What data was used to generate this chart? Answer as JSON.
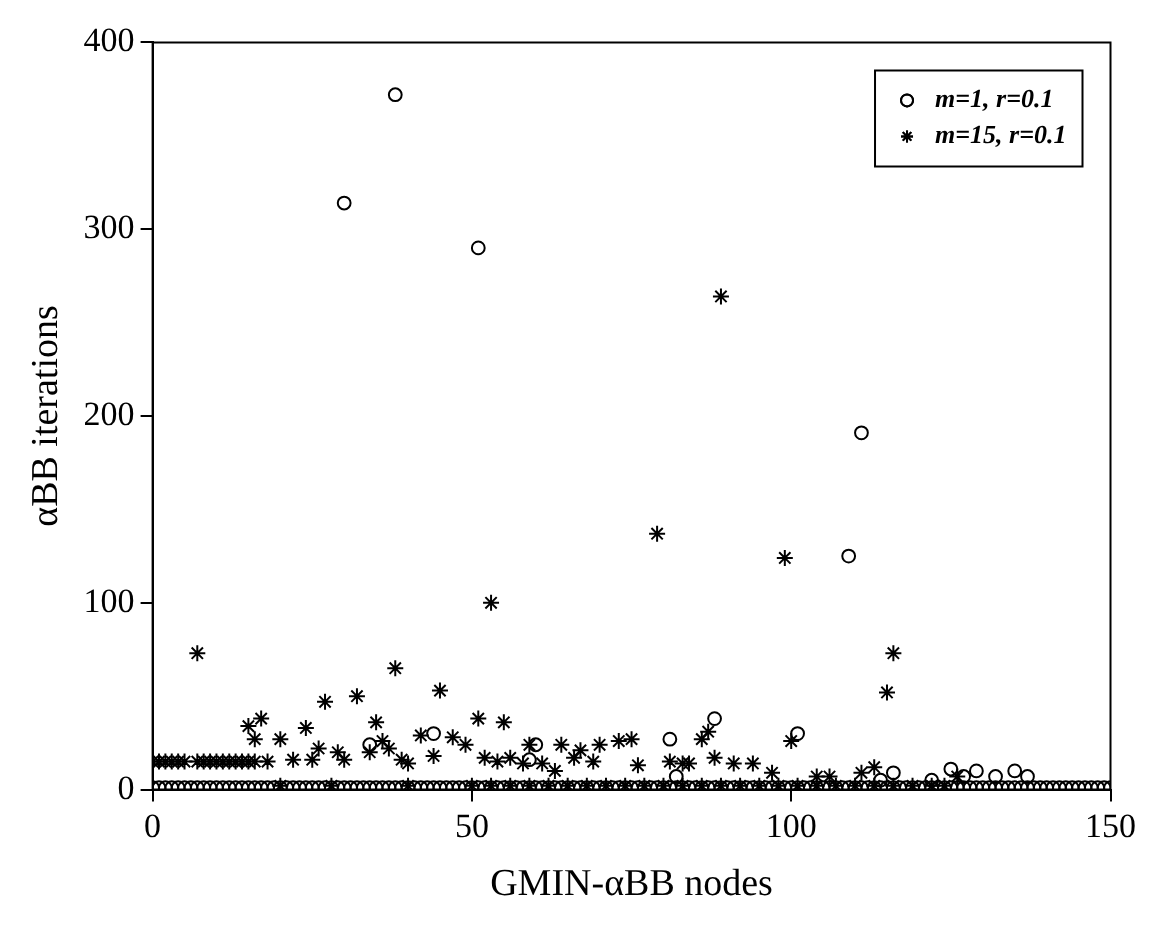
{
  "chart_data": {
    "type": "scatter",
    "xlabel": "GMIN-αBB nodes",
    "ylabel": "αBB iterations",
    "xlim": [
      0,
      150
    ],
    "xticks": [
      0,
      50,
      100,
      150
    ],
    "ylim": [
      0,
      400
    ],
    "yticks": [
      0,
      100,
      200,
      300,
      400
    ],
    "grid": false,
    "legend": "top right",
    "series": [
      {
        "name": "m=1, r=0.1",
        "color": "#000000",
        "marker": "circle",
        "x": [
          0,
          1,
          2,
          3,
          4,
          5,
          6,
          7,
          8,
          9,
          10,
          11,
          12,
          13,
          14,
          15,
          16,
          17,
          18,
          19,
          20,
          21,
          22,
          23,
          24,
          25,
          26,
          27,
          28,
          29,
          30,
          31,
          32,
          33,
          34,
          35,
          36,
          37,
          38,
          39,
          40,
          41,
          42,
          43,
          44,
          45,
          46,
          47,
          48,
          49,
          50,
          51,
          52,
          53,
          54,
          55,
          56,
          57,
          58,
          59,
          60,
          61,
          62,
          63,
          64,
          65,
          66,
          67,
          68,
          69,
          70,
          71,
          72,
          73,
          74,
          75,
          76,
          77,
          78,
          79,
          80,
          81,
          82,
          83,
          84,
          85,
          86,
          87,
          88,
          89,
          90,
          91,
          92,
          93,
          94,
          95,
          96,
          97,
          98,
          99,
          100,
          101,
          102,
          103,
          104,
          105,
          106,
          107,
          108,
          109,
          110,
          111,
          112,
          113,
          114,
          115,
          116,
          117,
          118,
          119,
          120,
          121,
          122,
          123,
          124,
          125,
          126,
          127,
          128,
          129,
          130,
          131,
          132,
          133,
          134,
          135,
          136,
          137,
          138,
          139,
          140,
          141,
          142,
          143,
          144,
          145,
          146,
          147,
          148,
          149,
          150,
          30,
          38,
          51,
          111,
          109,
          34,
          44,
          60,
          59,
          81,
          82,
          88,
          101,
          116,
          114,
          122,
          125,
          127,
          129,
          132,
          135,
          137
        ],
        "values": [
          1,
          1,
          1,
          1,
          1,
          1,
          1,
          1,
          1,
          1,
          1,
          1,
          1,
          1,
          1,
          1,
          1,
          1,
          1,
          1,
          1,
          1,
          1,
          1,
          1,
          1,
          1,
          1,
          1,
          1,
          1,
          1,
          1,
          1,
          1,
          1,
          1,
          1,
          1,
          1,
          1,
          1,
          1,
          1,
          1,
          1,
          1,
          1,
          1,
          1,
          1,
          1,
          1,
          1,
          1,
          1,
          1,
          1,
          1,
          1,
          1,
          1,
          1,
          1,
          1,
          1,
          1,
          1,
          1,
          1,
          1,
          1,
          1,
          1,
          1,
          1,
          1,
          1,
          1,
          1,
          1,
          1,
          1,
          1,
          1,
          1,
          1,
          1,
          1,
          1,
          1,
          1,
          1,
          1,
          1,
          1,
          1,
          1,
          1,
          1,
          1,
          1,
          1,
          1,
          1,
          1,
          1,
          1,
          1,
          1,
          1,
          1,
          1,
          1,
          1,
          1,
          1,
          1,
          1,
          1,
          1,
          1,
          1,
          1,
          1,
          1,
          1,
          1,
          1,
          1,
          1,
          1,
          1,
          1,
          1,
          1,
          1,
          1,
          1,
          1,
          1,
          1,
          1,
          1,
          1,
          1,
          1,
          1,
          1,
          1,
          1,
          314,
          372,
          290,
          191,
          125,
          24,
          30,
          24,
          16,
          27,
          7,
          38,
          30,
          9,
          5,
          5,
          11,
          7,
          10,
          7,
          10,
          7
        ]
      },
      {
        "name": "m=15, r=0.1",
        "color": "#000000",
        "marker": "cross",
        "x": [
          0,
          1,
          2,
          3,
          4,
          5,
          7,
          8,
          9,
          10,
          11,
          12,
          13,
          14,
          15,
          16,
          7,
          15,
          17,
          16,
          18,
          20,
          22,
          24,
          25,
          26,
          27,
          29,
          30,
          32,
          34,
          35,
          36,
          37,
          38,
          39,
          40,
          42,
          44,
          45,
          47,
          49,
          51,
          52,
          53,
          54,
          55,
          56,
          58,
          59,
          61,
          63,
          64,
          66,
          67,
          69,
          70,
          73,
          75,
          76,
          79,
          81,
          83,
          84,
          86,
          87,
          88,
          89,
          91,
          94,
          97,
          99,
          100,
          104,
          106,
          111,
          113,
          115,
          116,
          126,
          20,
          28,
          40,
          50,
          53,
          56,
          59,
          62,
          65,
          68,
          71,
          74,
          77,
          80,
          83,
          86,
          89,
          92,
          95,
          98,
          101,
          104,
          107,
          110,
          113,
          116,
          119,
          122,
          124
        ],
        "values": [
          15,
          15,
          15,
          15,
          15,
          15,
          15,
          15,
          15,
          15,
          15,
          15,
          15,
          15,
          15,
          15,
          73,
          34,
          38,
          27,
          15,
          27,
          16,
          33,
          16,
          22,
          47,
          20,
          16,
          50,
          20,
          36,
          26,
          22,
          65,
          16,
          14,
          29,
          18,
          53,
          28,
          24,
          38,
          17,
          100,
          15,
          36,
          17,
          14,
          24,
          14,
          10,
          24,
          17,
          21,
          15,
          24,
          26,
          27,
          13,
          137,
          15,
          14,
          14,
          27,
          31,
          17,
          264,
          14,
          14,
          9,
          124,
          26,
          7,
          7,
          9,
          12,
          52,
          73,
          7,
          2,
          2,
          2,
          2,
          2,
          2,
          2,
          2,
          2,
          2,
          2,
          2,
          2,
          2,
          2,
          2,
          2,
          2,
          2,
          2,
          2,
          2,
          2,
          2,
          2,
          2,
          2,
          2,
          2
        ]
      }
    ]
  }
}
